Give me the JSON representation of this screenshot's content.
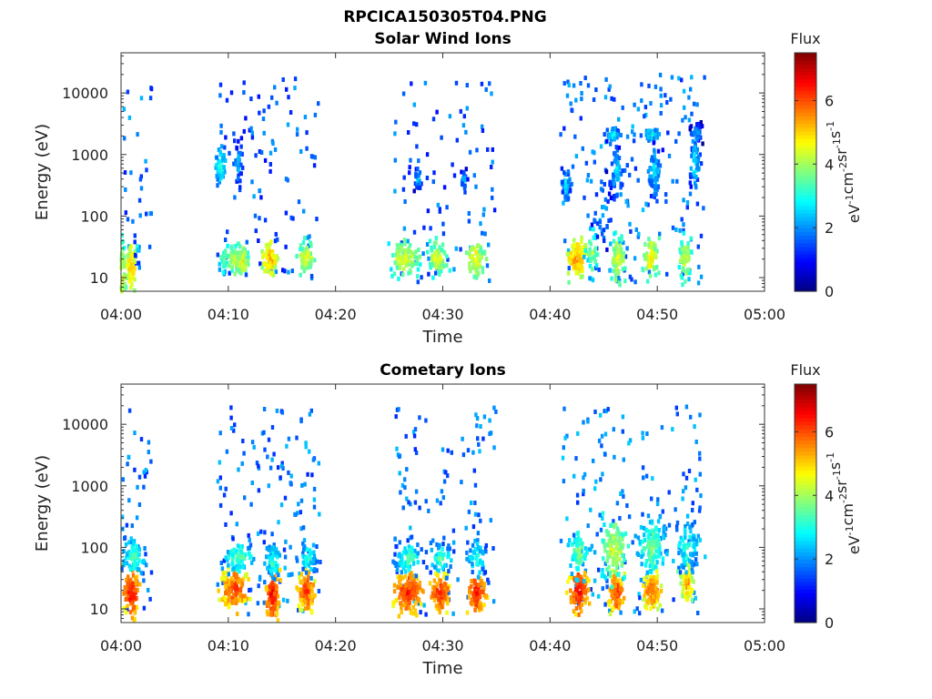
{
  "figure_title": "RPCICA150305T04.PNG",
  "colormap": "jet",
  "chart_data": [
    {
      "type": "heatmap",
      "title": "Solar Wind Ions",
      "xlabel": "Time",
      "ylabel": "Energy (eV)",
      "x_ticks": [
        "04:00",
        "04:10",
        "04:20",
        "04:30",
        "04:40",
        "04:50",
        "05:00"
      ],
      "xlim_minutes": [
        0,
        60
      ],
      "y_scale": "log",
      "ylim": [
        6,
        45000
      ],
      "y_ticks": [
        10,
        100,
        1000,
        10000
      ],
      "y_tick_labels": [
        "10",
        "100",
        "1000",
        "10000"
      ],
      "colorbar": {
        "label": "Flux",
        "units": "eV-1 cm-2 sr-1 s-1",
        "range": [
          0,
          7.5
        ],
        "ticks": [
          0,
          2,
          4,
          6
        ]
      },
      "blobs": [
        {
          "t": 0.1,
          "e": 11,
          "dt": 0.35,
          "de": 0.45,
          "v": 4.6,
          "dens": 0.8
        },
        {
          "t": 1.0,
          "e": 14,
          "dt": 0.35,
          "de": 0.35,
          "v": 5.4,
          "dens": 0.8
        },
        {
          "t": 1.5,
          "e": 30,
          "dt": 0.2,
          "de": 0.1,
          "v": 3.0,
          "dens": 0.3
        },
        {
          "t": 9.6,
          "e": 18,
          "dt": 0.3,
          "de": 0.25,
          "v": 3.4,
          "dens": 0.4
        },
        {
          "t": 10.6,
          "e": 20,
          "dt": 0.9,
          "de": 0.2,
          "v": 4.4,
          "dens": 0.85
        },
        {
          "t": 11.3,
          "e": 18,
          "dt": 0.4,
          "de": 0.2,
          "v": 4.9,
          "dens": 0.8
        },
        {
          "t": 13.9,
          "e": 20,
          "dt": 0.6,
          "de": 0.22,
          "v": 5.4,
          "dens": 0.9
        },
        {
          "t": 17.3,
          "e": 20,
          "dt": 0.6,
          "de": 0.22,
          "v": 4.7,
          "dens": 0.8
        },
        {
          "t": 26.5,
          "e": 20,
          "dt": 1.0,
          "de": 0.22,
          "v": 4.7,
          "dens": 0.85
        },
        {
          "t": 29.5,
          "e": 20,
          "dt": 0.7,
          "de": 0.22,
          "v": 4.6,
          "dens": 0.85
        },
        {
          "t": 33.1,
          "e": 20,
          "dt": 0.6,
          "de": 0.22,
          "v": 4.9,
          "dens": 0.85
        },
        {
          "t": 42.5,
          "e": 20,
          "dt": 0.7,
          "de": 0.25,
          "v": 5.6,
          "dens": 0.9
        },
        {
          "t": 44.0,
          "e": 25,
          "dt": 0.5,
          "de": 0.3,
          "v": 4.0,
          "dens": 0.6
        },
        {
          "t": 46.3,
          "e": 20,
          "dt": 0.5,
          "de": 0.3,
          "v": 4.7,
          "dens": 0.85
        },
        {
          "t": 49.4,
          "e": 20,
          "dt": 0.5,
          "de": 0.3,
          "v": 4.9,
          "dens": 0.85
        },
        {
          "t": 52.6,
          "e": 20,
          "dt": 0.5,
          "de": 0.25,
          "v": 4.5,
          "dens": 0.85
        },
        {
          "t": 9.3,
          "e": 650,
          "dt": 0.35,
          "de": 0.25,
          "v": 3.4,
          "dens": 0.85
        },
        {
          "t": 11.0,
          "e": 700,
          "dt": 0.25,
          "de": 0.3,
          "v": 2.6,
          "dens": 0.55
        },
        {
          "t": 27.7,
          "e": 380,
          "dt": 0.3,
          "de": 0.15,
          "v": 2.5,
          "dens": 0.55
        },
        {
          "t": 32.0,
          "e": 360,
          "dt": 0.25,
          "de": 0.15,
          "v": 2.4,
          "dens": 0.5
        },
        {
          "t": 41.5,
          "e": 320,
          "dt": 0.35,
          "de": 0.2,
          "v": 2.8,
          "dens": 0.6
        },
        {
          "t": 45.8,
          "e": 2100,
          "dt": 0.5,
          "de": 0.08,
          "v": 3.1,
          "dens": 0.9
        },
        {
          "t": 46.2,
          "e": 500,
          "dt": 0.4,
          "de": 0.35,
          "v": 2.7,
          "dens": 0.75
        },
        {
          "t": 49.5,
          "e": 2100,
          "dt": 0.5,
          "de": 0.08,
          "v": 3.1,
          "dens": 0.9
        },
        {
          "t": 49.8,
          "e": 500,
          "dt": 0.5,
          "de": 0.3,
          "v": 2.8,
          "dens": 0.8
        },
        {
          "t": 53.7,
          "e": 2200,
          "dt": 0.4,
          "de": 0.12,
          "v": 2.3,
          "dens": 0.85
        },
        {
          "t": 53.5,
          "e": 650,
          "dt": 0.35,
          "de": 0.3,
          "v": 2.9,
          "dens": 0.7
        },
        {
          "t": 44.8,
          "e": 120,
          "dt": 0.7,
          "de": 0.5,
          "v": 2.4,
          "dens": 0.35
        }
      ],
      "sparse": [
        {
          "t0": 0,
          "t1": 3,
          "v": 1.7,
          "n": 35
        },
        {
          "t0": 9,
          "t1": 18.5,
          "v": 1.6,
          "n": 110
        },
        {
          "t0": 25.5,
          "t1": 35,
          "v": 1.6,
          "n": 95
        },
        {
          "t0": 41,
          "t1": 54.5,
          "v": 1.8,
          "n": 190
        }
      ]
    },
    {
      "type": "heatmap",
      "title": "Cometary Ions",
      "xlabel": "Time",
      "ylabel": "Energy (eV)",
      "x_ticks": [
        "04:00",
        "04:10",
        "04:20",
        "04:30",
        "04:40",
        "04:50",
        "05:00"
      ],
      "xlim_minutes": [
        0,
        60
      ],
      "y_scale": "log",
      "ylim": [
        6,
        45000
      ],
      "y_ticks": [
        10,
        100,
        1000,
        10000
      ],
      "y_tick_labels": [
        "10",
        "100",
        "1000",
        "10000"
      ],
      "colorbar": {
        "label": "Flux",
        "units": "eV-1 cm-2 sr-1 s-1",
        "range": [
          0,
          7.5
        ],
        "ticks": [
          0,
          2,
          4,
          6
        ]
      },
      "blobs": [
        {
          "t": 1.0,
          "e": 18,
          "dt": 0.55,
          "de": 0.3,
          "v": 6.6,
          "dens": 1.0
        },
        {
          "t": 1.2,
          "e": 70,
          "dt": 0.9,
          "de": 0.25,
          "v": 3.4,
          "dens": 0.7
        },
        {
          "t": 10.6,
          "e": 20,
          "dt": 1.0,
          "de": 0.25,
          "v": 6.3,
          "dens": 1.0
        },
        {
          "t": 11.0,
          "e": 70,
          "dt": 1.0,
          "de": 0.2,
          "v": 3.6,
          "dens": 0.75
        },
        {
          "t": 14.1,
          "e": 16,
          "dt": 0.5,
          "de": 0.3,
          "v": 6.6,
          "dens": 1.0
        },
        {
          "t": 14.2,
          "e": 60,
          "dt": 0.6,
          "de": 0.2,
          "v": 3.4,
          "dens": 0.7
        },
        {
          "t": 17.3,
          "e": 20,
          "dt": 0.6,
          "de": 0.25,
          "v": 6.3,
          "dens": 1.0
        },
        {
          "t": 17.5,
          "e": 70,
          "dt": 0.7,
          "de": 0.25,
          "v": 3.2,
          "dens": 0.65
        },
        {
          "t": 26.8,
          "e": 18,
          "dt": 1.0,
          "de": 0.25,
          "v": 6.5,
          "dens": 1.0
        },
        {
          "t": 26.8,
          "e": 65,
          "dt": 1.0,
          "de": 0.2,
          "v": 3.5,
          "dens": 0.7
        },
        {
          "t": 29.8,
          "e": 18,
          "dt": 0.7,
          "de": 0.25,
          "v": 6.4,
          "dens": 1.0
        },
        {
          "t": 29.8,
          "e": 65,
          "dt": 0.8,
          "de": 0.2,
          "v": 3.4,
          "dens": 0.7
        },
        {
          "t": 33.2,
          "e": 18,
          "dt": 0.6,
          "de": 0.25,
          "v": 6.6,
          "dens": 1.0
        },
        {
          "t": 33.2,
          "e": 65,
          "dt": 0.7,
          "de": 0.25,
          "v": 3.2,
          "dens": 0.65
        },
        {
          "t": 42.7,
          "e": 20,
          "dt": 0.7,
          "de": 0.25,
          "v": 6.7,
          "dens": 1.0
        },
        {
          "t": 42.7,
          "e": 80,
          "dt": 0.7,
          "de": 0.3,
          "v": 3.8,
          "dens": 0.7
        },
        {
          "t": 46.2,
          "e": 18,
          "dt": 0.6,
          "de": 0.25,
          "v": 6.3,
          "dens": 1.0
        },
        {
          "t": 46.0,
          "e": 90,
          "dt": 0.9,
          "de": 0.4,
          "v": 4.5,
          "dens": 0.85
        },
        {
          "t": 49.5,
          "e": 20,
          "dt": 0.6,
          "de": 0.25,
          "v": 6.0,
          "dens": 1.0
        },
        {
          "t": 49.5,
          "e": 100,
          "dt": 1.0,
          "de": 0.35,
          "v": 3.8,
          "dens": 0.8
        },
        {
          "t": 52.8,
          "e": 25,
          "dt": 0.5,
          "de": 0.25,
          "v": 5.4,
          "dens": 0.9
        },
        {
          "t": 52.8,
          "e": 100,
          "dt": 0.8,
          "de": 0.35,
          "v": 3.3,
          "dens": 0.7
        }
      ],
      "sparse": [
        {
          "t0": 0,
          "t1": 3,
          "v": 1.8,
          "n": 40
        },
        {
          "t0": 9,
          "t1": 18.5,
          "v": 1.8,
          "n": 140
        },
        {
          "t0": 25.5,
          "t1": 35,
          "v": 1.8,
          "n": 120
        },
        {
          "t0": 41,
          "t1": 54.5,
          "v": 1.9,
          "n": 170
        }
      ]
    }
  ]
}
